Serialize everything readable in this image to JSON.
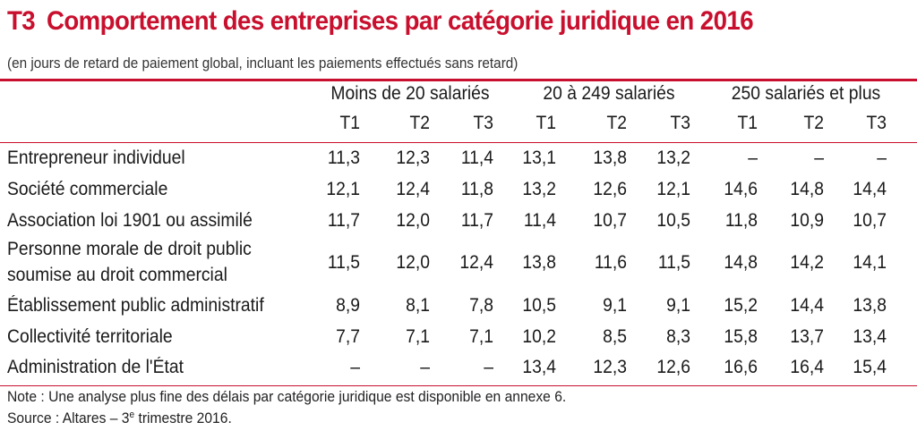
{
  "title": {
    "code": "T3",
    "text": "Comportement des entreprises par catégorie juridique en 2016"
  },
  "subtitle": "(en jours de retard de paiement global, incluant les paiements effectués sans retard)",
  "colors": {
    "accent": "#c8102e",
    "rule": "#c8102e",
    "text": "#1a1a1a"
  },
  "table": {
    "groups": [
      "Moins de 20 salariés",
      "20 à 249 salariés",
      "250 salariés et plus"
    ],
    "subheaders": [
      "T1",
      "T2",
      "T3",
      "T1",
      "T2",
      "T3",
      "T1",
      "T2",
      "T3"
    ],
    "rows": [
      {
        "label": "Entrepreneur individuel",
        "values": [
          "11,3",
          "12,3",
          "11,4",
          "13,1",
          "13,8",
          "13,2",
          "–",
          "–",
          "–"
        ]
      },
      {
        "label": "Société commerciale",
        "values": [
          "12,1",
          "12,4",
          "11,8",
          "13,2",
          "12,6",
          "12,1",
          "14,6",
          "14,8",
          "14,4"
        ]
      },
      {
        "label": "Association loi 1901 ou assimilé",
        "values": [
          "11,7",
          "12,0",
          "11,7",
          "11,4",
          "10,7",
          "10,5",
          "11,8",
          "10,9",
          "10,7"
        ]
      },
      {
        "label_lines": [
          "Personne morale de droit public",
          "soumise au droit commercial"
        ],
        "values": [
          "11,5",
          "12,0",
          "12,4",
          "13,8",
          "11,6",
          "11,5",
          "14,8",
          "14,2",
          "14,1"
        ]
      },
      {
        "label": "Établissement public administratif",
        "values": [
          "8,9",
          "8,1",
          "7,8",
          "10,5",
          "9,1",
          "9,1",
          "15,2",
          "14,4",
          "13,8"
        ]
      },
      {
        "label": "Collectivité territoriale",
        "values": [
          "7,7",
          "7,1",
          "7,1",
          "10,2",
          "8,5",
          "8,3",
          "15,8",
          "13,7",
          "13,4"
        ]
      },
      {
        "label": "Administration de l'État",
        "values": [
          "–",
          "–",
          "–",
          "13,4",
          "12,3",
          "12,6",
          "16,6",
          "16,4",
          "15,4"
        ]
      }
    ]
  },
  "notes": {
    "note": "Note : Une analyse plus fine des délais par catégorie juridique est disponible en annexe 6.",
    "source_prefix": "Source : Altares – 3",
    "source_sup": "e",
    "source_suffix": " trimestre 2016."
  }
}
